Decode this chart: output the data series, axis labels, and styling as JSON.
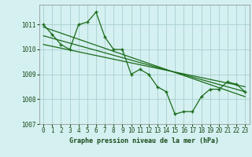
{
  "title": "Graphe pression niveau de la mer (hPa)",
  "bg_color": "#d4f0f0",
  "grid_color": "#aacfcf",
  "line_color": "#1a6b1a",
  "xlim": [
    -0.5,
    23.5
  ],
  "ylim": [
    1007.0,
    1011.8
  ],
  "yticks": [
    1007,
    1008,
    1009,
    1010,
    1011
  ],
  "xticks": [
    0,
    1,
    2,
    3,
    4,
    5,
    6,
    7,
    8,
    9,
    10,
    11,
    12,
    13,
    14,
    15,
    16,
    17,
    18,
    19,
    20,
    21,
    22,
    23
  ],
  "series1": [
    1011.0,
    1010.6,
    1010.2,
    1010.0,
    1011.0,
    1011.1,
    1011.5,
    1010.5,
    1010.0,
    1010.0,
    1009.0,
    1009.2,
    1009.0,
    1008.5,
    1008.3,
    1007.4,
    1007.5,
    1007.5,
    1008.1,
    1008.4,
    1008.4,
    1008.7,
    1008.6,
    1008.3
  ],
  "trend1_x": [
    0,
    23
  ],
  "trend1_y": [
    1010.9,
    1008.1
  ],
  "trend2_x": [
    0,
    23
  ],
  "trend2_y": [
    1010.55,
    1008.3
  ],
  "trend3_x": [
    0,
    23
  ],
  "trend3_y": [
    1010.2,
    1008.5
  ]
}
